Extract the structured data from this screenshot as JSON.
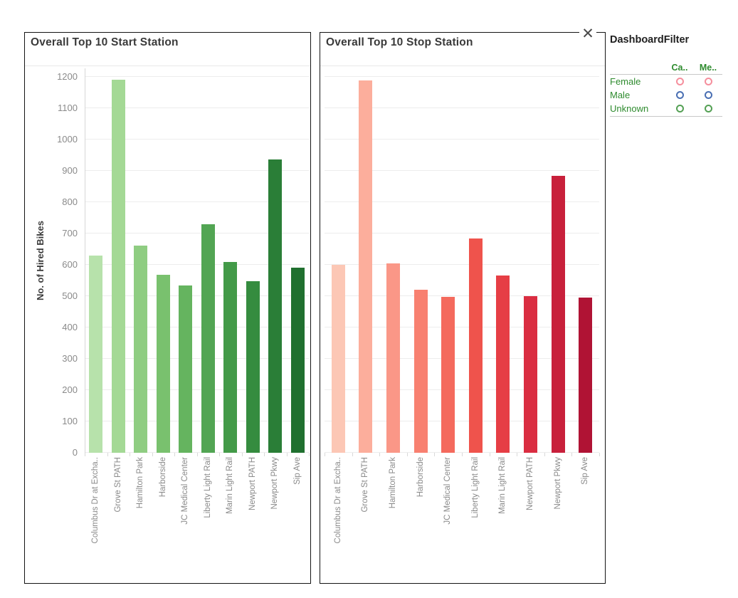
{
  "icons": {
    "close": "✕"
  },
  "legend": {
    "title": "DashboardFilter",
    "columns": [
      "Ca..",
      "Me.."
    ],
    "rows": [
      {
        "label": "Female",
        "ring_color": "#f58f9d"
      },
      {
        "label": "Male",
        "ring_color": "#4a6fb3"
      },
      {
        "label": "Unknown",
        "ring_color": "#54a054"
      }
    ],
    "text_color": "#2e8b2e"
  },
  "chart_data": [
    {
      "type": "bar",
      "title": "Overall Top 10 Start Station",
      "xlabel": "",
      "ylabel": "No. of Hired Bikes",
      "categories": [
        "Columbus Dr at Excha..",
        "Grove St PATH",
        "Hamilton Park",
        "Harborside",
        "JC Medical Center",
        "Liberty Light Rail",
        "Marin Light Rail",
        "Newport PATH",
        "Newport Pkwy",
        "Sip Ave"
      ],
      "values": [
        630,
        1190,
        662,
        568,
        533,
        730,
        609,
        547,
        936,
        591
      ],
      "bar_colors": [
        "#b7e2ab",
        "#a4d995",
        "#8fcd82",
        "#79c16e",
        "#65b45f",
        "#52a553",
        "#439a48",
        "#358c3f",
        "#2a7e37",
        "#20702f"
      ],
      "yticks": [
        0,
        100,
        200,
        300,
        400,
        500,
        600,
        700,
        800,
        900,
        1000,
        1100,
        1200
      ],
      "ylim": [
        0,
        1230
      ],
      "grid": true,
      "show_y_tick_labels": true,
      "x_tick_label_rotation": 90
    },
    {
      "type": "bar",
      "title": "Overall Top 10 Stop Station",
      "xlabel": "",
      "ylabel": "",
      "categories": [
        "Columbus Dr at Excha..",
        "Grove St PATH",
        "Hamilton Park",
        "Harborside",
        "JC Medical Center",
        "Liberty Light Rail",
        "Marin Light Rail",
        "Newport PATH",
        "Newport Pkwy",
        "Sip Ave"
      ],
      "values": [
        599,
        1188,
        605,
        521,
        498,
        683,
        567,
        501,
        883,
        495
      ],
      "bar_colors": [
        "#fcc7b5",
        "#fcae9c",
        "#fa9787",
        "#f88070",
        "#f46a5d",
        "#ef534c",
        "#e63e45",
        "#da2d41",
        "#c8203b",
        "#b01334"
      ],
      "yticks": [
        0,
        100,
        200,
        300,
        400,
        500,
        600,
        700,
        800,
        900,
        1000,
        1100,
        1200
      ],
      "ylim": [
        0,
        1230
      ],
      "grid": true,
      "show_y_tick_labels": false,
      "x_tick_label_rotation": 90
    }
  ]
}
